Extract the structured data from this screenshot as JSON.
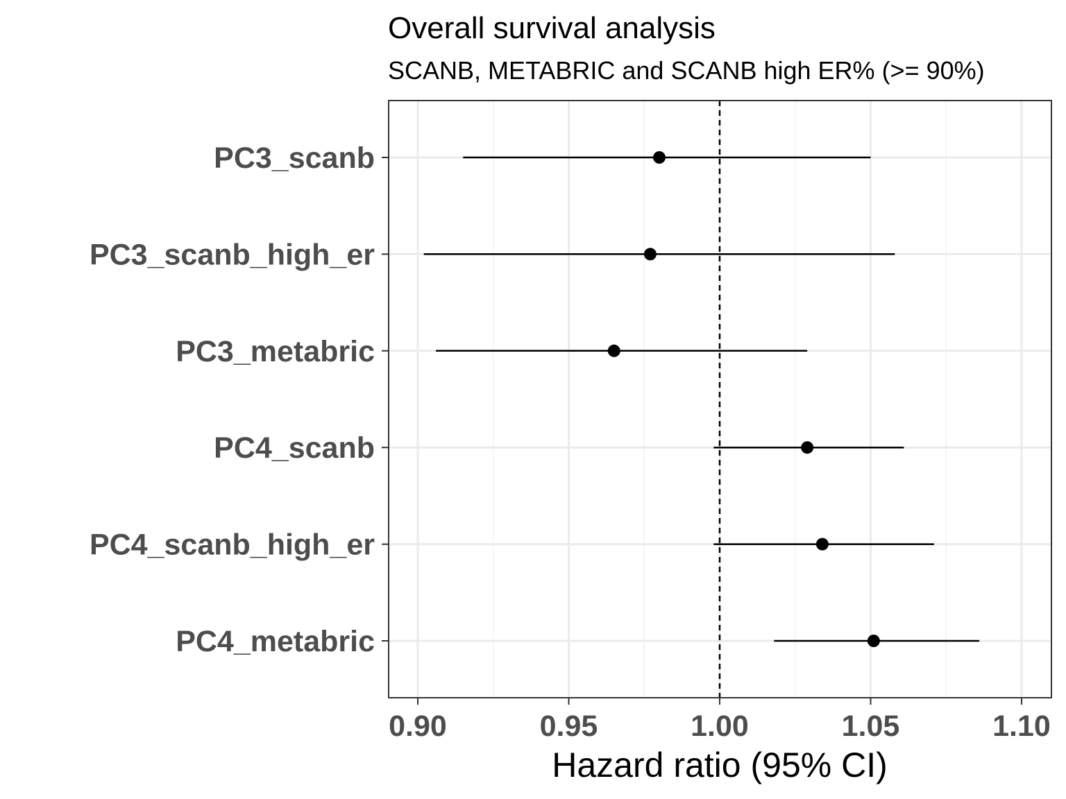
{
  "chart_data": {
    "type": "scatter",
    "subtype": "forest-plot",
    "title": "Overall survival analysis",
    "subtitle": "SCANB, METABRIC and SCANB high ER% (>= 90%)",
    "xlabel": "Hazard ratio (95% CI)",
    "ylabel": "",
    "xlim": [
      0.89,
      1.1
    ],
    "xticks": [
      0.9,
      0.95,
      1.0,
      1.05,
      1.1
    ],
    "xtick_labels": [
      "0.90",
      "0.95",
      "1.00",
      "1.05",
      "1.10"
    ],
    "reference_line": 1.0,
    "grid": true,
    "categories": [
      "PC3_scanb",
      "PC3_scanb_high_er",
      "PC3_metabric",
      "PC4_scanb",
      "PC4_scanb_high_er",
      "PC4_metabric"
    ],
    "estimates": [
      0.98,
      0.977,
      0.965,
      1.029,
      1.034,
      1.051
    ],
    "ci_lower": [
      0.915,
      0.902,
      0.906,
      0.998,
      0.998,
      1.018
    ],
    "ci_upper": [
      1.05,
      1.058,
      1.029,
      1.061,
      1.071,
      1.086
    ]
  },
  "colors": {
    "point": "#000000",
    "grid_major": "#ebebeb",
    "grid_minor": "#f2f2f2",
    "panel_border": "#333333",
    "tick_label": "#4d4d4d"
  }
}
